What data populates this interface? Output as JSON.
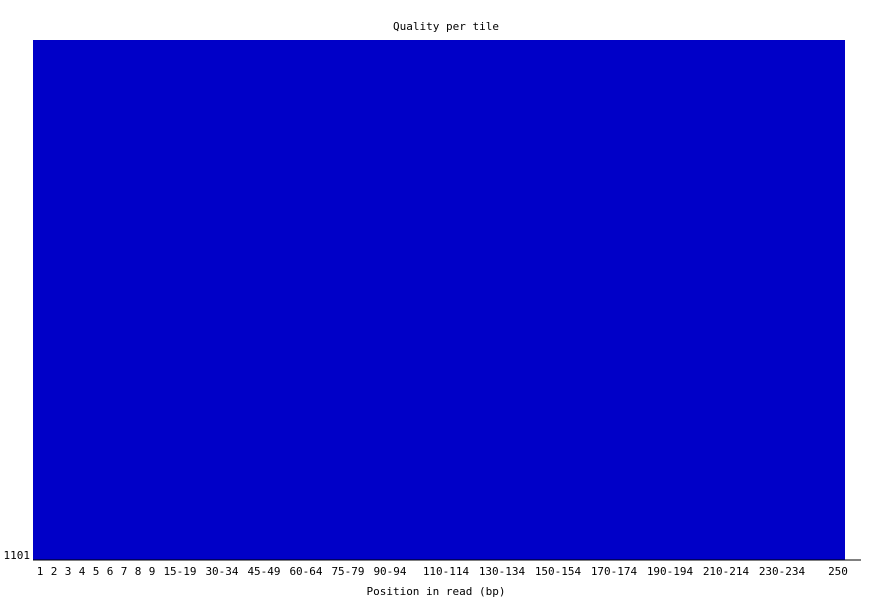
{
  "chart_data": {
    "type": "heatmap",
    "title": "Quality per tile",
    "xlabel": "Position in read (bp)",
    "ylabel": "",
    "x_categories": [
      "1",
      "2",
      "3",
      "4",
      "5",
      "6",
      "7",
      "8",
      "9",
      "15-19",
      "30-34",
      "45-49",
      "60-64",
      "75-79",
      "90-94",
      "110-114",
      "130-134",
      "150-154",
      "170-174",
      "190-194",
      "210-214",
      "230-234",
      "250"
    ],
    "y_categories": [
      "1101"
    ],
    "fill_color": "#0000C8",
    "grid": false,
    "legend": "none"
  }
}
